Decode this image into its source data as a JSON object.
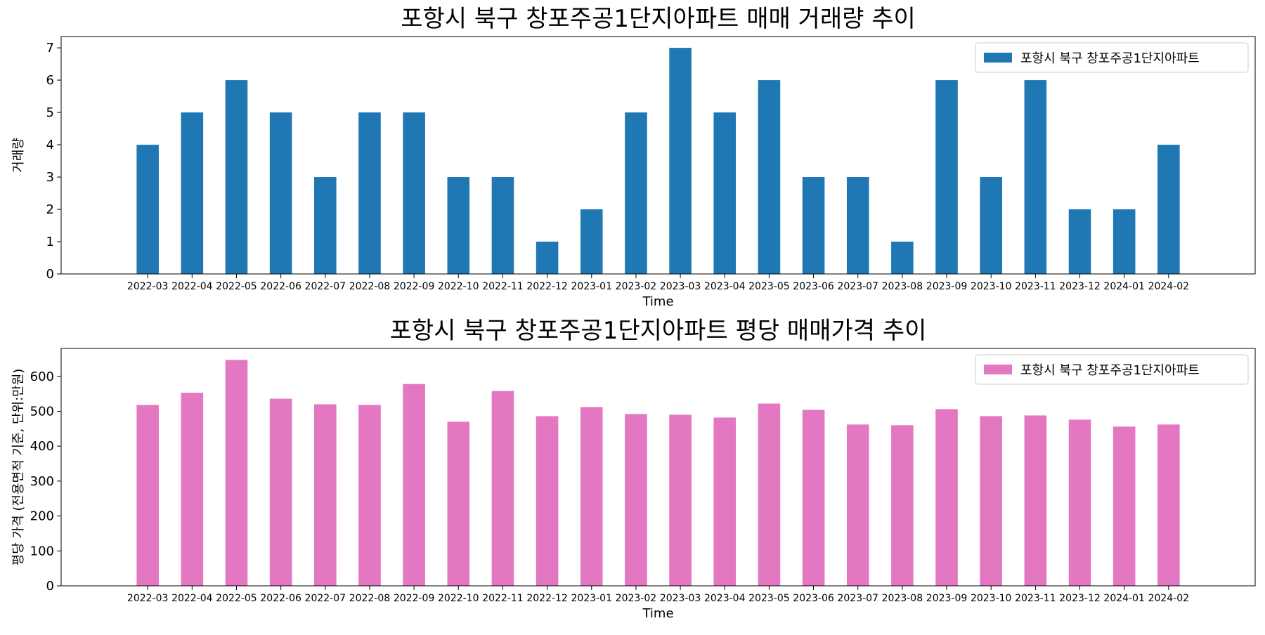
{
  "chart_data": [
    {
      "type": "bar",
      "title": "포항시 북구 창포주공1단지아파트 매매 거래량 추이",
      "xlabel": "Time",
      "ylabel": "거래량",
      "categories": [
        "2022-03",
        "2022-04",
        "2022-05",
        "2022-06",
        "2022-07",
        "2022-08",
        "2022-09",
        "2022-10",
        "2022-11",
        "2022-12",
        "2023-01",
        "2023-02",
        "2023-03",
        "2023-04",
        "2023-05",
        "2023-06",
        "2023-07",
        "2023-08",
        "2023-09",
        "2023-10",
        "2023-11",
        "2023-12",
        "2024-01",
        "2024-02"
      ],
      "series": [
        {
          "name": "포항시 북구 창포주공1단지아파트",
          "color": "#1f77b4",
          "values": [
            4,
            5,
            6,
            5,
            3,
            5,
            5,
            3,
            3,
            1,
            2,
            5,
            7,
            5,
            6,
            3,
            3,
            1,
            6,
            3,
            6,
            2,
            2,
            4
          ]
        }
      ],
      "ylim": [
        0,
        7.35
      ],
      "yticks": [
        0,
        1,
        2,
        3,
        4,
        5,
        6,
        7
      ],
      "legend": "top-right",
      "grid": false
    },
    {
      "type": "bar",
      "title": "포항시 북구 창포주공1단지아파트 평당 매매가격 추이",
      "xlabel": "Time",
      "ylabel": "평당 가격 (전용면적 기준, 단위:만원)",
      "categories": [
        "2022-03",
        "2022-04",
        "2022-05",
        "2022-06",
        "2022-07",
        "2022-08",
        "2022-09",
        "2022-10",
        "2022-11",
        "2022-12",
        "2023-01",
        "2023-02",
        "2023-03",
        "2023-04",
        "2023-05",
        "2023-06",
        "2023-07",
        "2023-08",
        "2023-09",
        "2023-10",
        "2023-11",
        "2023-12",
        "2024-01",
        "2024-02"
      ],
      "series": [
        {
          "name": "포항시 북구 창포주공1단지아파트",
          "color": "#e377c2",
          "values": [
            518,
            553,
            647,
            536,
            520,
            518,
            578,
            470,
            558,
            486,
            512,
            492,
            490,
            482,
            522,
            504,
            462,
            460,
            506,
            486,
            488,
            476,
            456,
            462
          ]
        }
      ],
      "ylim": [
        0,
        680
      ],
      "yticks": [
        0,
        100,
        200,
        300,
        400,
        500,
        600
      ],
      "legend": "top-right",
      "grid": false
    }
  ]
}
